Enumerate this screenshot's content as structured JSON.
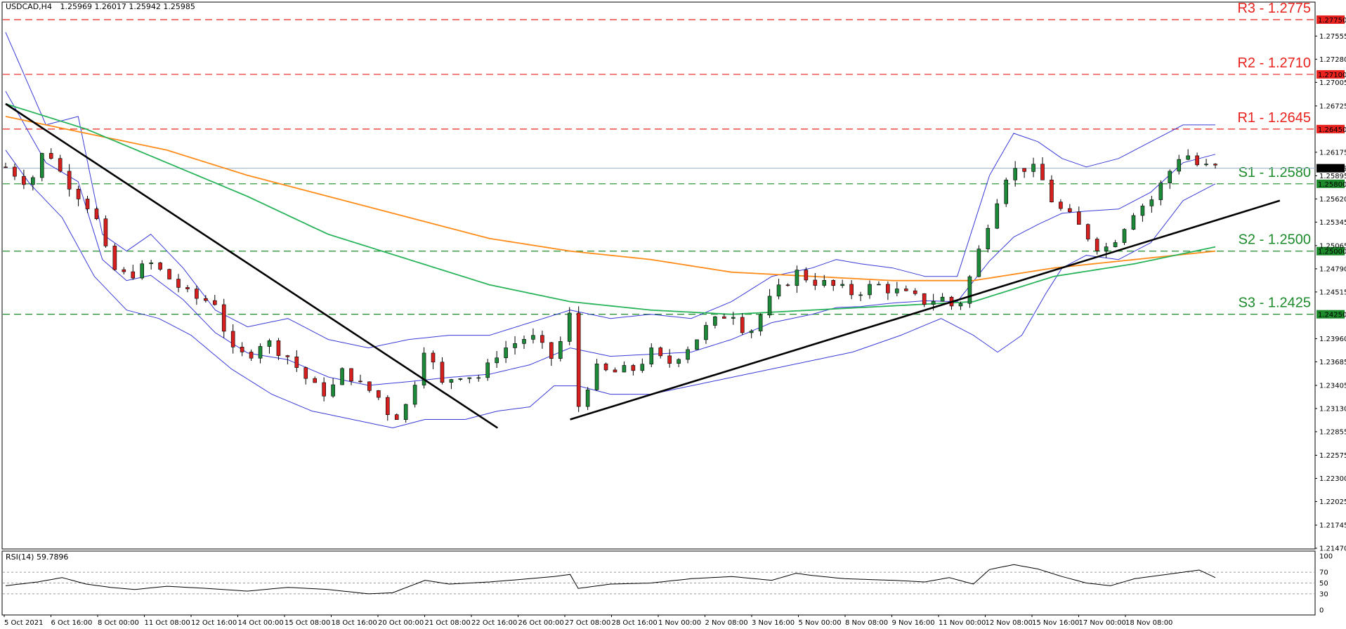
{
  "header": {
    "symbol": "USDCAD,H4",
    "ohlc": "1.25969 1.26017 1.25942 1.25985"
  },
  "colors": {
    "resistance": "#e8231f",
    "support": "#1c8a2a",
    "bollinger": "#3a3ad6",
    "ma_orange": "#ff8c1a",
    "ma_green": "#29b35a",
    "trendline": "#000000",
    "bull_candle": "#1d8a3a",
    "bear_candle": "#d62020",
    "current_price_line": "#9ab0c8"
  },
  "chart_data": [
    {
      "type": "candlestick",
      "title": "USDCAD,H4",
      "ylim": [
        1.2147,
        1.2795
      ],
      "y_ticks": [
        "1.27750",
        "1.27555",
        "1.27280",
        "1.27005",
        "1.26725",
        "1.26450",
        "1.26175",
        "1.25985",
        "1.25895",
        "1.25620",
        "1.25345",
        "1.25065",
        "1.25000",
        "1.24790",
        "1.24515",
        "1.24250",
        "1.23960",
        "1.23685",
        "1.23405",
        "1.23130",
        "1.22855",
        "1.22575",
        "1.22300",
        "1.22025",
        "1.21745",
        "1.21470"
      ],
      "x_ticks": [
        "5 Oct 2021",
        "6 Oct 16:00",
        "8 Oct 00:00",
        "11 Oct 08:00",
        "12 Oct 16:00",
        "14 Oct 00:00",
        "15 Oct 08:00",
        "18 Oct 16:00",
        "20 Oct 00:00",
        "21 Oct 08:00",
        "22 Oct 16:00",
        "26 Oct 00:00",
        "27 Oct 08:00",
        "28 Oct 16:00",
        "1 Nov 00:00",
        "2 Nov 08:00",
        "3 Nov 16:00",
        "5 Nov 00:00",
        "8 Nov 08:00",
        "9 Nov 16:00",
        "11 Nov 00:00",
        "12 Nov 08:00",
        "15 Nov 16:00",
        "17 Nov 00:00",
        "18 Nov 08:00"
      ],
      "levels": [
        {
          "label": "R3 - 1.2775",
          "value": 1.2775,
          "kind": "resistance",
          "tag": "1.27750"
        },
        {
          "label": "R2 - 1.2710",
          "value": 1.271,
          "kind": "resistance",
          "tag": "1.27100"
        },
        {
          "label": "R1 - 1.2645",
          "value": 1.2645,
          "kind": "resistance",
          "tag": "1.26450"
        },
        {
          "label": "S1 - 1.2580",
          "value": 1.258,
          "kind": "support",
          "tag": "1.25800"
        },
        {
          "label": "S2 - 1.2500",
          "value": 1.25,
          "kind": "support",
          "tag": "1.25000"
        },
        {
          "label": "S3 - 1.2425",
          "value": 1.2425,
          "kind": "support",
          "tag": "1.24250"
        }
      ],
      "current_price": 1.25985,
      "current_price_tag": "1.25985",
      "candle_count": 134,
      "close_path": [
        [
          0,
          1.26
        ],
        [
          6,
          1.258
        ],
        [
          10,
          1.2625
        ],
        [
          14,
          1.259
        ],
        [
          22,
          1.2545
        ],
        [
          26,
          1.248
        ],
        [
          30,
          1.247
        ],
        [
          36,
          1.2485
        ],
        [
          40,
          1.247
        ],
        [
          46,
          1.2445
        ],
        [
          52,
          1.244
        ],
        [
          56,
          1.238
        ],
        [
          60,
          1.2375
        ],
        [
          64,
          1.2395
        ],
        [
          70,
          1.2375
        ],
        [
          76,
          1.234
        ],
        [
          80,
          1.233
        ],
        [
          84,
          1.236
        ],
        [
          88,
          1.234
        ],
        [
          92,
          1.233
        ],
        [
          96,
          1.23
        ],
        [
          100,
          1.232
        ],
        [
          104,
          1.239
        ],
        [
          108,
          1.234
        ],
        [
          112,
          1.2355
        ],
        [
          118,
          1.235
        ],
        [
          122,
          1.238
        ],
        [
          126,
          1.239
        ],
        [
          130,
          1.24
        ],
        [
          136,
          1.237
        ],
        [
          140,
          1.2425
        ],
        [
          142,
          1.2315
        ],
        [
          146,
          1.236
        ],
        [
          150,
          1.2355
        ],
        [
          156,
          1.236
        ],
        [
          160,
          1.238
        ],
        [
          164,
          1.2365
        ],
        [
          170,
          1.239
        ],
        [
          174,
          1.241
        ],
        [
          180,
          1.243
        ],
        [
          184,
          1.24
        ],
        [
          190,
          1.2445
        ],
        [
          196,
          1.2475
        ],
        [
          200,
          1.2465
        ],
        [
          204,
          1.246
        ],
        [
          210,
          1.245
        ],
        [
          216,
          1.246
        ],
        [
          222,
          1.245
        ],
        [
          228,
          1.244
        ],
        [
          232,
          1.2445
        ],
        [
          236,
          1.243
        ],
        [
          240,
          1.248
        ],
        [
          244,
          1.254
        ],
        [
          248,
          1.259
        ],
        [
          252,
          1.26
        ],
        [
          256,
          1.2595
        ],
        [
          260,
          1.2555
        ],
        [
          264,
          1.254
        ],
        [
          268,
          1.252
        ],
        [
          272,
          1.25
        ],
        [
          276,
          1.252
        ],
        [
          280,
          1.255
        ],
        [
          284,
          1.256
        ],
        [
          288,
          1.259
        ],
        [
          292,
          1.262
        ],
        [
          296,
          1.26
        ],
        [
          300,
          1.2599
        ]
      ],
      "bb_upper": [
        [
          0,
          1.276
        ],
        [
          10,
          1.265
        ],
        [
          18,
          1.266
        ],
        [
          24,
          1.252
        ],
        [
          30,
          1.25
        ],
        [
          36,
          1.252
        ],
        [
          44,
          1.248
        ],
        [
          52,
          1.243
        ],
        [
          60,
          1.241
        ],
        [
          70,
          1.242
        ],
        [
          80,
          1.2395
        ],
        [
          90,
          1.2385
        ],
        [
          100,
          1.2395
        ],
        [
          110,
          1.24
        ],
        [
          120,
          1.24
        ],
        [
          130,
          1.2415
        ],
        [
          140,
          1.243
        ],
        [
          150,
          1.242
        ],
        [
          160,
          1.2425
        ],
        [
          170,
          1.242
        ],
        [
          180,
          1.244
        ],
        [
          190,
          1.247
        ],
        [
          200,
          1.248
        ],
        [
          206,
          1.249
        ],
        [
          212,
          1.2485
        ],
        [
          220,
          1.248
        ],
        [
          228,
          1.247
        ],
        [
          236,
          1.247
        ],
        [
          244,
          1.259
        ],
        [
          250,
          1.264
        ],
        [
          256,
          1.263
        ],
        [
          262,
          1.261
        ],
        [
          268,
          1.26
        ],
        [
          276,
          1.261
        ],
        [
          284,
          1.263
        ],
        [
          292,
          1.265
        ],
        [
          300,
          1.265
        ]
      ],
      "bb_lower": [
        [
          0,
          1.262
        ],
        [
          6,
          1.258
        ],
        [
          14,
          1.254
        ],
        [
          22,
          1.247
        ],
        [
          30,
          1.243
        ],
        [
          38,
          1.242
        ],
        [
          46,
          1.24
        ],
        [
          56,
          1.236
        ],
        [
          66,
          1.233
        ],
        [
          76,
          1.231
        ],
        [
          86,
          1.23
        ],
        [
          96,
          1.229
        ],
        [
          104,
          1.23
        ],
        [
          114,
          1.23
        ],
        [
          122,
          1.231
        ],
        [
          130,
          1.2315
        ],
        [
          136,
          1.234
        ],
        [
          142,
          1.234
        ],
        [
          150,
          1.233
        ],
        [
          160,
          1.233
        ],
        [
          170,
          1.234
        ],
        [
          180,
          1.235
        ],
        [
          190,
          1.236
        ],
        [
          200,
          1.237
        ],
        [
          210,
          1.238
        ],
        [
          222,
          1.24
        ],
        [
          232,
          1.242
        ],
        [
          240,
          1.24
        ],
        [
          246,
          1.238
        ],
        [
          252,
          1.24
        ],
        [
          258,
          1.245
        ],
        [
          262,
          1.248
        ],
        [
          268,
          1.2495
        ],
        [
          276,
          1.249
        ],
        [
          284,
          1.251
        ],
        [
          292,
          1.256
        ],
        [
          300,
          1.258
        ]
      ],
      "ma_orange": [
        [
          0,
          1.266
        ],
        [
          20,
          1.264
        ],
        [
          40,
          1.262
        ],
        [
          60,
          1.259
        ],
        [
          80,
          1.2565
        ],
        [
          100,
          1.254
        ],
        [
          120,
          1.2515
        ],
        [
          140,
          1.25
        ],
        [
          160,
          1.249
        ],
        [
          180,
          1.2475
        ],
        [
          200,
          1.247
        ],
        [
          220,
          1.2465
        ],
        [
          240,
          1.2465
        ],
        [
          260,
          1.248
        ],
        [
          280,
          1.249
        ],
        [
          300,
          1.25
        ]
      ],
      "ma_green": [
        [
          0,
          1.2675
        ],
        [
          20,
          1.2645
        ],
        [
          40,
          1.2605
        ],
        [
          60,
          1.2565
        ],
        [
          80,
          1.252
        ],
        [
          100,
          1.249
        ],
        [
          120,
          1.246
        ],
        [
          140,
          1.244
        ],
        [
          160,
          1.243
        ],
        [
          180,
          1.2425
        ],
        [
          200,
          1.243
        ],
        [
          220,
          1.2435
        ],
        [
          240,
          1.244
        ],
        [
          260,
          1.247
        ],
        [
          280,
          1.2485
        ],
        [
          300,
          1.2505
        ]
      ],
      "trendlines": [
        {
          "from": [
            0,
            1.2675
          ],
          "to": [
            122,
            1.229
          ]
        },
        {
          "from": [
            140,
            1.23
          ],
          "to": [
            316,
            1.256
          ]
        }
      ]
    },
    {
      "type": "line",
      "title": "RSI(14) 59.7896",
      "ylim": [
        0,
        100
      ],
      "y_ticks": [
        "100",
        "70",
        "50",
        "30",
        "0"
      ],
      "dashed_levels": [
        70,
        50,
        30
      ],
      "rsi_path": [
        [
          0,
          45
        ],
        [
          8,
          52
        ],
        [
          14,
          60
        ],
        [
          20,
          48
        ],
        [
          26,
          42
        ],
        [
          32,
          38
        ],
        [
          40,
          44
        ],
        [
          50,
          40
        ],
        [
          60,
          35
        ],
        [
          70,
          42
        ],
        [
          80,
          38
        ],
        [
          90,
          30
        ],
        [
          96,
          32
        ],
        [
          104,
          55
        ],
        [
          110,
          48
        ],
        [
          120,
          52
        ],
        [
          130,
          58
        ],
        [
          136,
          62
        ],
        [
          140,
          66
        ],
        [
          142,
          40
        ],
        [
          150,
          48
        ],
        [
          160,
          50
        ],
        [
          170,
          58
        ],
        [
          180,
          62
        ],
        [
          190,
          55
        ],
        [
          196,
          68
        ],
        [
          200,
          64
        ],
        [
          208,
          58
        ],
        [
          220,
          55
        ],
        [
          228,
          52
        ],
        [
          234,
          60
        ],
        [
          240,
          48
        ],
        [
          244,
          75
        ],
        [
          250,
          84
        ],
        [
          256,
          76
        ],
        [
          262,
          62
        ],
        [
          268,
          50
        ],
        [
          274,
          45
        ],
        [
          280,
          58
        ],
        [
          290,
          68
        ],
        [
          296,
          74
        ],
        [
          300,
          60
        ]
      ]
    }
  ]
}
